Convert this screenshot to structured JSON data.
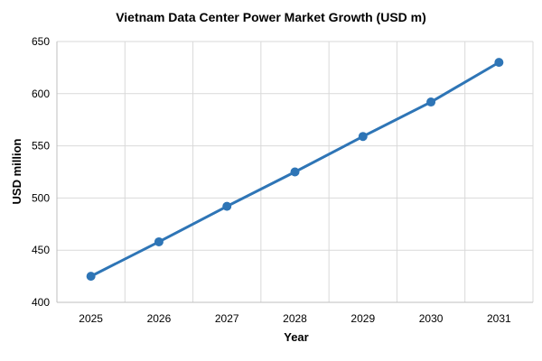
{
  "chart_data": {
    "type": "line",
    "title": "Vietnam Data Center Power Market Growth (USD m)",
    "xlabel": "Year",
    "ylabel": "USD million",
    "x": [
      "2025",
      "2026",
      "2027",
      "2028",
      "2029",
      "2030",
      "2031"
    ],
    "series": [
      {
        "values": [
          425,
          458,
          492,
          525,
          559,
          592,
          630
        ]
      }
    ],
    "ylim": [
      400,
      650
    ],
    "yticks": [
      400,
      450,
      500,
      550,
      600,
      650
    ],
    "grid": true,
    "legend": "none",
    "colors": {
      "line": "#2e75b6",
      "grid": "#d9d9d9",
      "axis": "#bfbfbf"
    }
  }
}
